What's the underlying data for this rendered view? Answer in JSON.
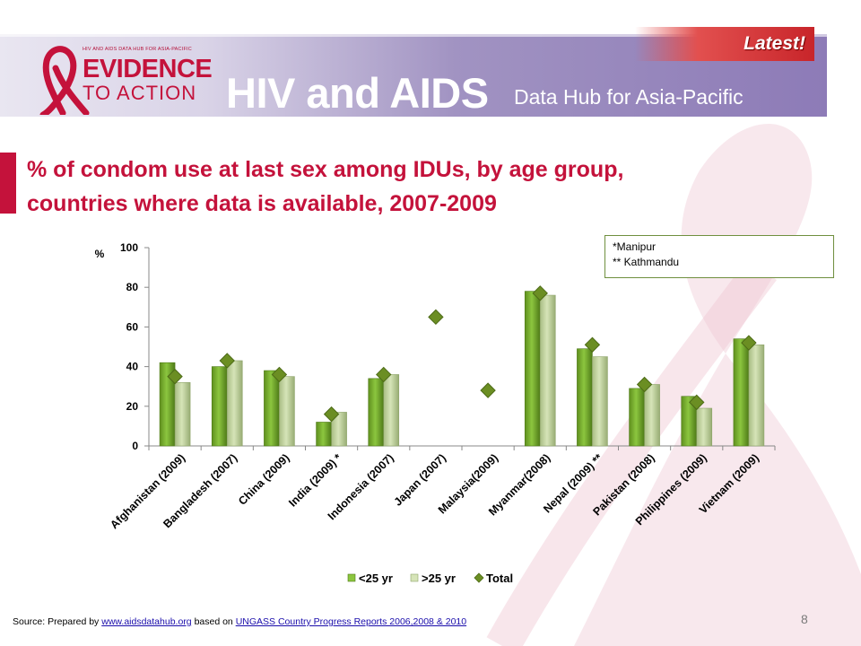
{
  "header": {
    "logo_small": "HIV AND AIDS DATA HUB FOR ASIA-PACIFIC",
    "logo_evidence": "EVIDENCE",
    "logo_action": "TO ACTION",
    "title": "HIV and AIDS",
    "subtitle": "Data Hub for Asia-Pacific",
    "latest": "Latest!"
  },
  "slide": {
    "title_line1": "% of condom use at last sex among IDUs, by age group,",
    "title_line2": "countries where data is available, 2007-2009",
    "notes": [
      "*Manipur",
      "** Kathmandu"
    ],
    "page_number": "8"
  },
  "source": {
    "prefix": "Source: Prepared by",
    "link1": "www.aidsdatahub.org",
    "middle": "based on",
    "link2": "UNGASS Country Progress Reports 2006,2008 & 2010"
  },
  "colors": {
    "brand_red": "#c4123b",
    "header_purple": "#8d7bb7",
    "bar_under25": "#8cc63f",
    "bar_over25": "#d6e4b8",
    "total_marker": "#6b8e23"
  },
  "chart_data": {
    "type": "bar",
    "ylabel": "%",
    "ylim": [
      0,
      100
    ],
    "yticks": [
      0,
      20,
      40,
      60,
      80,
      100
    ],
    "grid": false,
    "legend_position": "bottom",
    "categories": [
      "Afghanistan (2009)",
      "Bangladesh (2007)",
      "China (2009)",
      "India (2009) *",
      "Indonesia (2007)",
      "Japan (2007)",
      "Malaysia(2009)",
      "Myanmar(2008)",
      "Nepal (2009) **",
      "Pakistan (2008)",
      "Philippines (2009)",
      "Vietnam (2009)"
    ],
    "series": [
      {
        "name": "<25 yr",
        "type": "bar",
        "values": [
          42,
          40,
          38,
          12,
          34,
          null,
          null,
          78,
          49,
          29,
          25,
          54
        ]
      },
      {
        "name": ">25 yr",
        "type": "bar",
        "values": [
          32,
          43,
          35,
          17,
          36,
          null,
          null,
          76,
          45,
          31,
          19,
          51
        ]
      },
      {
        "name": "Total",
        "type": "marker",
        "values": [
          35,
          43,
          36,
          16,
          36,
          65,
          28,
          77,
          51,
          31,
          22,
          52
        ]
      }
    ]
  }
}
